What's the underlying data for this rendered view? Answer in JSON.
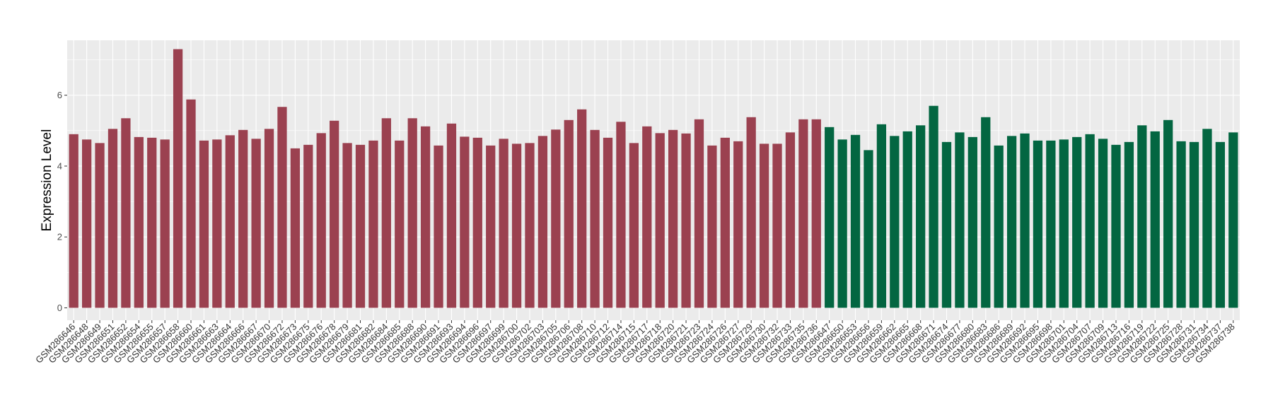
{
  "chart_data": {
    "type": "bar",
    "title": "",
    "xlabel": "",
    "ylabel": "Expression Level",
    "ylim": [
      -0.35,
      7.55
    ],
    "yticks": [
      0,
      2,
      4,
      6
    ],
    "grid": true,
    "legend": "none",
    "colors": {
      "panel": "#ebebeb",
      "grid": "#ffffff",
      "series_a": "#9b4150",
      "series_b": "#036641"
    },
    "categories": [
      "GSM286646",
      "GSM286648",
      "GSM286649",
      "GSM286651",
      "GSM286652",
      "GSM286654",
      "GSM286655",
      "GSM286657",
      "GSM286658",
      "GSM286660",
      "GSM286661",
      "GSM286663",
      "GSM286664",
      "GSM286666",
      "GSM286667",
      "GSM286670",
      "GSM286672",
      "GSM286673",
      "GSM286675",
      "GSM286676",
      "GSM286678",
      "GSM286679",
      "GSM286681",
      "GSM286682",
      "GSM286684",
      "GSM286685",
      "GSM286688",
      "GSM286690",
      "GSM286691",
      "GSM286693",
      "GSM286694",
      "GSM286696",
      "GSM286697",
      "GSM286699",
      "GSM286700",
      "GSM286702",
      "GSM286703",
      "GSM286705",
      "GSM286706",
      "GSM286708",
      "GSM286710",
      "GSM286712",
      "GSM286714",
      "GSM286715",
      "GSM286717",
      "GSM286718",
      "GSM286720",
      "GSM286721",
      "GSM286723",
      "GSM286724",
      "GSM286726",
      "GSM286727",
      "GSM286729",
      "GSM286730",
      "GSM286732",
      "GSM286733",
      "GSM286735",
      "GSM286736",
      "GSM286647",
      "GSM286650",
      "GSM286653",
      "GSM286656",
      "GSM286659",
      "GSM286662",
      "GSM286665",
      "GSM286668",
      "GSM286671",
      "GSM286674",
      "GSM286677",
      "GSM286680",
      "GSM286683",
      "GSM286686",
      "GSM286689",
      "GSM286692",
      "GSM286695",
      "GSM286698",
      "GSM286701",
      "GSM286704",
      "GSM286707",
      "GSM286709",
      "GSM286713",
      "GSM286716",
      "GSM286719",
      "GSM286722",
      "GSM286725",
      "GSM286728",
      "GSM286731",
      "GSM286734",
      "GSM286737",
      "GSM286738"
    ],
    "values": [
      4.9,
      4.75,
      4.65,
      5.05,
      5.35,
      4.82,
      4.8,
      4.75,
      7.3,
      5.88,
      4.72,
      4.75,
      4.87,
      5.02,
      4.77,
      5.05,
      5.67,
      4.5,
      4.6,
      4.93,
      5.28,
      4.65,
      4.6,
      4.72,
      5.35,
      4.72,
      5.35,
      5.12,
      4.58,
      5.2,
      4.83,
      4.8,
      4.58,
      4.77,
      4.63,
      4.65,
      4.85,
      5.03,
      5.3,
      5.6,
      5.02,
      4.8,
      5.25,
      4.65,
      5.12,
      4.93,
      5.02,
      4.92,
      5.32,
      4.58,
      4.8,
      4.7,
      5.38,
      4.63,
      4.63,
      4.95,
      5.32,
      5.32,
      5.1,
      4.75,
      4.88,
      4.45,
      5.18,
      4.85,
      4.98,
      5.15,
      5.7,
      4.68,
      4.95,
      4.82,
      5.38,
      4.58,
      4.85,
      4.92,
      4.72,
      4.72,
      4.75,
      4.82,
      4.9,
      4.77,
      4.6,
      4.68,
      5.15,
      4.98,
      5.3,
      4.7,
      4.68,
      5.05,
      4.68,
      4.95
    ],
    "series_split": 58
  }
}
